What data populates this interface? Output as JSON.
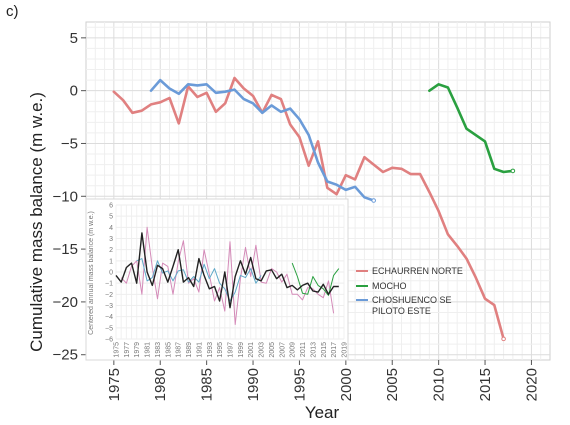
{
  "panel_label": "c)",
  "chart_data": [
    {
      "type": "line",
      "xlabel": "Year",
      "ylabel": "Cumulative mass balance (m w.e.)",
      "xlim": [
        1972,
        2022
      ],
      "ylim": [
        -25.5,
        6.5
      ],
      "xticks": [
        1975,
        1980,
        1985,
        1990,
        1995,
        2000,
        2005,
        2010,
        2015,
        2020
      ],
      "yticks": [
        5,
        0,
        -5,
        -10,
        -15,
        -20,
        -25
      ],
      "grid": true,
      "legend": "lower-right",
      "series": [
        {
          "name": "ECHAURREN NORTE",
          "color": "#e08080",
          "x": [
            1975,
            1976,
            1977,
            1978,
            1979,
            1980,
            1981,
            1982,
            1983,
            1984,
            1985,
            1986,
            1987,
            1988,
            1989,
            1990,
            1991,
            1992,
            1993,
            1994,
            1995,
            1996,
            1997,
            1998,
            1999,
            2000,
            2001,
            2002,
            2003,
            2004,
            2005,
            2006,
            2007,
            2008,
            2009,
            2010,
            2011,
            2012,
            2013,
            2014,
            2015,
            2016,
            2017
          ],
          "y": [
            -0.1,
            -0.9,
            -2.1,
            -1.9,
            -1.3,
            -1.1,
            -0.7,
            -3.1,
            0.4,
            -0.6,
            -0.2,
            -2.0,
            -1.2,
            1.2,
            0.2,
            -0.5,
            -2.1,
            -0.4,
            -0.8,
            -3.2,
            -4.4,
            -7.1,
            -4.8,
            -9.2,
            -9.8,
            -8.0,
            -8.4,
            -6.3,
            -7.0,
            -7.7,
            -7.3,
            -7.4,
            -7.9,
            -7.9,
            -9.6,
            -11.4,
            -13.6,
            -14.7,
            -15.9,
            -17.7,
            -19.7,
            -20.3,
            -23.5
          ]
        },
        {
          "name": "MOCHO",
          "color": "#2aa040",
          "x": [
            2009,
            2010,
            2011,
            2012,
            2013,
            2015,
            2016,
            2017,
            2018
          ],
          "y": [
            0.0,
            0.6,
            0.3,
            -1.6,
            -3.6,
            -4.8,
            -7.4,
            -7.7,
            -7.6
          ]
        },
        {
          "name": "CHOSHUENCO SE PILOTO ESTE",
          "color": "#6b9bd8",
          "x": [
            1979,
            1980,
            1981,
            1982,
            1983,
            1984,
            1985,
            1986,
            1987,
            1988,
            1989,
            1990,
            1991,
            1992,
            1993,
            1994,
            1995,
            1996,
            1997,
            1998,
            1999,
            2000,
            2001,
            2002,
            2003
          ],
          "y": [
            0.0,
            1.0,
            0.2,
            -0.3,
            0.6,
            0.5,
            0.6,
            -0.2,
            -0.1,
            0.1,
            -0.8,
            -1.2,
            -2.1,
            -1.4,
            -2.0,
            -1.7,
            -2.7,
            -4.2,
            -6.8,
            -8.6,
            -8.9,
            -9.4,
            -9.1,
            -10.1,
            -10.4
          ]
        }
      ]
    },
    {
      "type": "line",
      "ylabel": "Centered annual mass balance (m w.e.)",
      "xlim": [
        1975,
        2019
      ],
      "ylim": [
        -6,
        6
      ],
      "xticks": [
        1975,
        1977,
        1979,
        1981,
        1983,
        1985,
        1987,
        1989,
        1991,
        1993,
        1995,
        1997,
        1999,
        2001,
        2003,
        2005,
        2007,
        2009,
        2011,
        2013,
        2015,
        2017,
        2019
      ],
      "yticks": [
        6,
        5,
        4,
        3,
        2,
        1,
        0,
        -1,
        -2,
        -3,
        -4,
        -5,
        -6
      ],
      "series": [
        {
          "name": "ECHAURREN NORTE",
          "color": "#d48ab8",
          "x": [
            1976,
            1977,
            1978,
            1979,
            1980,
            1981,
            1982,
            1983,
            1984,
            1985,
            1986,
            1987,
            1988,
            1989,
            1990,
            1991,
            1992,
            1993,
            1994,
            1995,
            1996,
            1997,
            1998,
            1999,
            2000,
            2001,
            2002,
            2003,
            2004,
            2005,
            2006,
            2007,
            2008,
            2009,
            2010,
            2011,
            2012,
            2013,
            2014,
            2015,
            2016,
            2017
          ],
          "y": [
            -0.5,
            -1.0,
            0.5,
            1.0,
            -2.0,
            4.0,
            0.4,
            -2.4,
            0.8,
            0.5,
            -2.0,
            0.9,
            2.8,
            -1.0,
            -0.6,
            -1.8,
            2.0,
            -0.2,
            -2.6,
            -1.4,
            -3.5,
            2.7,
            -4.7,
            -0.6,
            2.2,
            -0.4,
            2.4,
            -0.9,
            -1.0,
            0.3,
            0.0,
            -0.9,
            -0.2,
            -2.0,
            -2.0,
            -2.5,
            -1.4,
            -1.5,
            -2.0,
            -2.3,
            -0.8,
            -3.7
          ]
        },
        {
          "name": "MOCHO",
          "color": "#2aa040",
          "x": [
            2009,
            2010,
            2011,
            2012,
            2013,
            2014,
            2015,
            2016,
            2017,
            2018
          ],
          "y": [
            0.8,
            -0.4,
            -1.9,
            -2.0,
            -0.4,
            -1.2,
            -1.5,
            -2.1,
            -0.3,
            0.3
          ]
        },
        {
          "name": "CHOSHUENCO SE PILOTO ESTE",
          "color": "#5fa8c8",
          "x": [
            1979,
            1980,
            1981,
            1982,
            1983,
            1984,
            1985,
            1986,
            1987,
            1988,
            1989,
            1990,
            1991,
            1992,
            1993,
            1994,
            1995,
            1996,
            1997,
            1998,
            1999,
            2000,
            2001,
            2002,
            2003
          ],
          "y": [
            1.0,
            1.2,
            -0.8,
            -0.5,
            1.0,
            -0.1,
            0.1,
            -0.8,
            0.1,
            0.2,
            -0.9,
            -0.4,
            -0.9,
            0.7,
            -0.6,
            0.3,
            -1.0,
            -1.5,
            -2.6,
            -1.8,
            -0.3,
            -0.5,
            0.3,
            -1.0,
            -0.3
          ]
        },
        {
          "name": "",
          "color": "#222222",
          "x": [
            1975,
            1976,
            1977,
            1978,
            1979,
            1980,
            1981,
            1982,
            1983,
            1984,
            1985,
            1986,
            1987,
            1988,
            1989,
            1990,
            1991,
            1992,
            1993,
            1994,
            1995,
            1996,
            1997,
            1998,
            1999,
            2000,
            2001,
            2002,
            2003,
            2004,
            2005,
            2006,
            2007,
            2008,
            2009,
            2010,
            2011,
            2012,
            2013,
            2014,
            2015,
            2016,
            2017,
            2018
          ],
          "y": [
            -0.3,
            -0.9,
            0.4,
            0.8,
            -1.0,
            3.5,
            0.0,
            -1.2,
            0.6,
            0.3,
            -0.9,
            0.5,
            2.0,
            -0.9,
            -0.5,
            -1.3,
            1.2,
            -0.3,
            -1.5,
            -1.3,
            -2.6,
            0.0,
            -3.2,
            -0.4,
            1.0,
            -0.2,
            1.3,
            -0.6,
            -0.8,
            0.1,
            0.2,
            -0.6,
            -0.2,
            -1.4,
            -1.2,
            -1.6,
            -1.2,
            -1.0,
            -1.7,
            -1.8,
            -1.1,
            -2.0,
            -1.3,
            -1.3
          ]
        }
      ]
    }
  ]
}
